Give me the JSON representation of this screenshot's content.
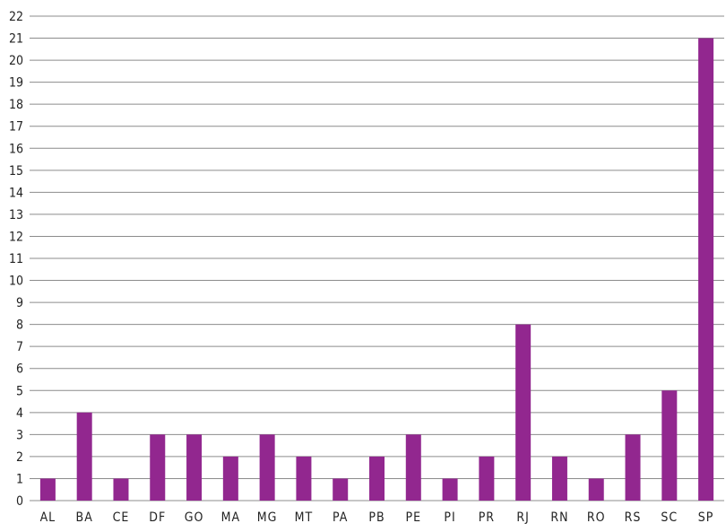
{
  "chart_data": {
    "type": "bar",
    "title": "",
    "xlabel": "",
    "ylabel": "",
    "categories": [
      "AL",
      "BA",
      "CE",
      "DF",
      "GO",
      "MA",
      "MG",
      "MT",
      "PA",
      "PB",
      "PE",
      "PI",
      "PR",
      "RJ",
      "RN",
      "RO",
      "RS",
      "SC",
      "SP"
    ],
    "values": [
      1,
      4,
      1,
      3,
      3,
      2,
      3,
      2,
      1,
      2,
      3,
      1,
      2,
      8,
      2,
      1,
      3,
      5,
      21
    ],
    "ylim": [
      0,
      22
    ],
    "yticks": [
      0,
      1,
      2,
      3,
      4,
      5,
      6,
      7,
      8,
      9,
      10,
      11,
      12,
      13,
      14,
      15,
      16,
      17,
      18,
      19,
      20,
      21,
      22
    ],
    "grid": true,
    "legend": "none",
    "bar_color": "#92278f",
    "grid_color": "#8c8c8c"
  }
}
